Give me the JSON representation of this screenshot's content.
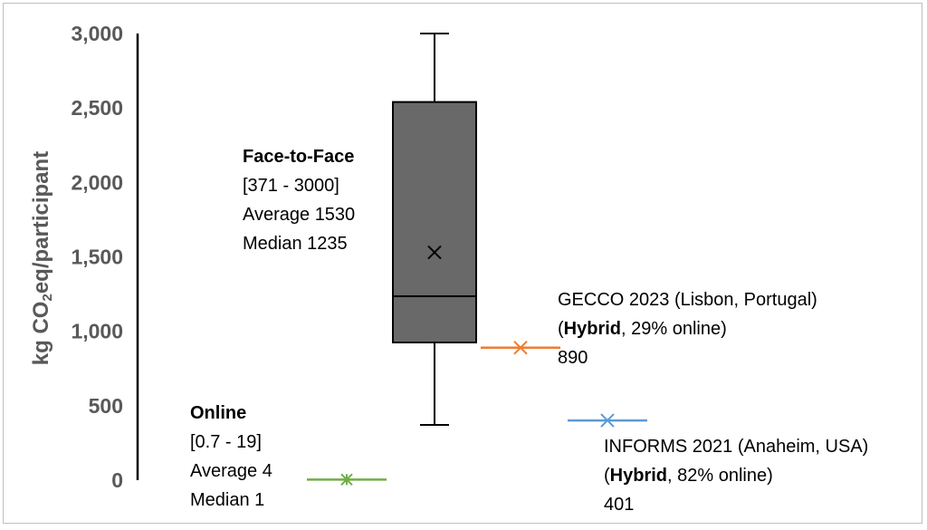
{
  "chart_data": {
    "type": "box",
    "ylabel_parts": {
      "prefix": "kg CO",
      "sub": "2",
      "suffix": "eq/participant"
    },
    "ylim": [
      0,
      3000
    ],
    "yticks": [
      0,
      500,
      1000,
      1500,
      2000,
      2500,
      3000
    ],
    "ytick_labels": [
      "0",
      "500",
      "1,000",
      "1,500",
      "2,000",
      "2,500",
      "3,000"
    ],
    "grid": false,
    "box": {
      "name": "Face-to-Face",
      "min": 371,
      "q1": 925,
      "median": 1235,
      "q3": 2540,
      "max": 3000,
      "mean": 1530,
      "color": "#696969"
    },
    "points": [
      {
        "name": "Online",
        "value": 4,
        "color": "#70ad47"
      },
      {
        "name": "GECCO 2023",
        "value": 890,
        "color": "#ed7d31"
      },
      {
        "name": "INFORMS 2021",
        "value": 401,
        "color": "#5b9bd5"
      }
    ],
    "annotations": {
      "face": {
        "title": "Face-to-Face",
        "range": "[371 - 3000]",
        "average": "Average 1530",
        "median": "Median 1235"
      },
      "online": {
        "title": "Online",
        "range": "[0.7 - 19]",
        "average": "Average 4",
        "median": "Median 1"
      },
      "gecco": {
        "title": "GECCO 2023 (Lisbon, Portugal)",
        "open": "(",
        "hybrid": "Hybrid",
        "rest": ", 29% online)",
        "value": "890"
      },
      "informs": {
        "title": "INFORMS 2021  (Anaheim, USA)",
        "open": "(",
        "hybrid": "Hybrid",
        "rest": ", 82% online)",
        "value": "401"
      }
    }
  }
}
